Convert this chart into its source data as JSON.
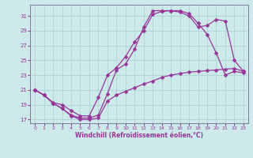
{
  "title": "Windchill (Refroidissement éolien,°C)",
  "bg_color": "#cceaea",
  "grid_color": "#aad4d4",
  "line_color": "#993399",
  "spine_color": "#7a7a9a",
  "xlim": [
    -0.5,
    23.5
  ],
  "ylim": [
    16.5,
    32.5
  ],
  "xticks": [
    0,
    1,
    2,
    3,
    4,
    5,
    6,
    7,
    8,
    9,
    10,
    11,
    12,
    13,
    14,
    15,
    16,
    17,
    18,
    19,
    20,
    21,
    22,
    23
  ],
  "yticks": [
    17,
    19,
    21,
    23,
    25,
    27,
    29,
    31
  ],
  "curve1_x": [
    0,
    1,
    2,
    3,
    4,
    5,
    6,
    7,
    8,
    9,
    10,
    11,
    12,
    13,
    14,
    15,
    16,
    17,
    18,
    19,
    20,
    21,
    22,
    23
  ],
  "curve1_y": [
    21.0,
    20.3,
    19.2,
    18.5,
    17.6,
    17.2,
    17.2,
    17.6,
    20.5,
    23.7,
    24.5,
    26.5,
    29.5,
    31.7,
    31.7,
    31.7,
    31.7,
    31.3,
    30.0,
    28.5,
    26.0,
    23.0,
    23.5,
    23.3
  ],
  "curve2_x": [
    0,
    1,
    2,
    3,
    4,
    5,
    6,
    7,
    8,
    9,
    10,
    11,
    12,
    13,
    14,
    15,
    16,
    17,
    18,
    19,
    20,
    21,
    22,
    23
  ],
  "curve2_y": [
    21.0,
    20.3,
    19.3,
    19.0,
    18.2,
    17.5,
    17.5,
    20.0,
    23.0,
    24.0,
    25.5,
    27.5,
    29.0,
    31.2,
    31.6,
    31.7,
    31.5,
    31.0,
    29.5,
    29.7,
    30.5,
    30.3,
    25.0,
    23.5
  ],
  "curve3_x": [
    0,
    1,
    2,
    3,
    4,
    5,
    6,
    7,
    8,
    9,
    10,
    11,
    12,
    13,
    14,
    15,
    16,
    17,
    18,
    19,
    20,
    21,
    22,
    23
  ],
  "curve3_y": [
    21.0,
    20.3,
    19.2,
    18.5,
    17.5,
    17.0,
    17.0,
    17.2,
    19.5,
    20.3,
    20.8,
    21.3,
    21.8,
    22.2,
    22.7,
    23.0,
    23.2,
    23.4,
    23.5,
    23.6,
    23.7,
    23.8,
    23.9,
    23.5
  ],
  "marker": "D",
  "markersize": 2.5,
  "linewidth": 0.9
}
